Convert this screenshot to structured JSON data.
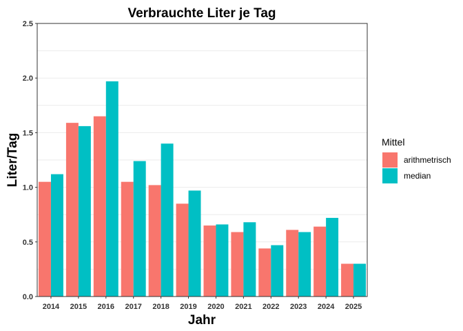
{
  "chart_data": {
    "type": "bar",
    "title": "Verbrauchte Liter je Tag",
    "xlabel": "Jahr",
    "ylabel": "Liter/Tag",
    "categories": [
      "2014",
      "2015",
      "2016",
      "2017",
      "2018",
      "2019",
      "2020",
      "2021",
      "2022",
      "2023",
      "2024",
      "2025"
    ],
    "series": [
      {
        "name": "arithmetrisch",
        "color": "#F8766D",
        "values": [
          1.05,
          1.59,
          1.65,
          1.05,
          1.02,
          0.85,
          0.65,
          0.59,
          0.44,
          0.61,
          0.64,
          0.3
        ]
      },
      {
        "name": "median",
        "color": "#00BFC4",
        "values": [
          1.12,
          1.56,
          1.97,
          1.24,
          1.4,
          0.97,
          0.66,
          0.68,
          0.47,
          0.59,
          0.72,
          0.3
        ]
      }
    ],
    "ylim": [
      0,
      2.5
    ],
    "yticks": [
      "0.0",
      "0.5",
      "1.0",
      "1.5",
      "2.0",
      "2.5"
    ],
    "grid": true,
    "legend": {
      "title": "Mittel",
      "position": "right"
    }
  }
}
